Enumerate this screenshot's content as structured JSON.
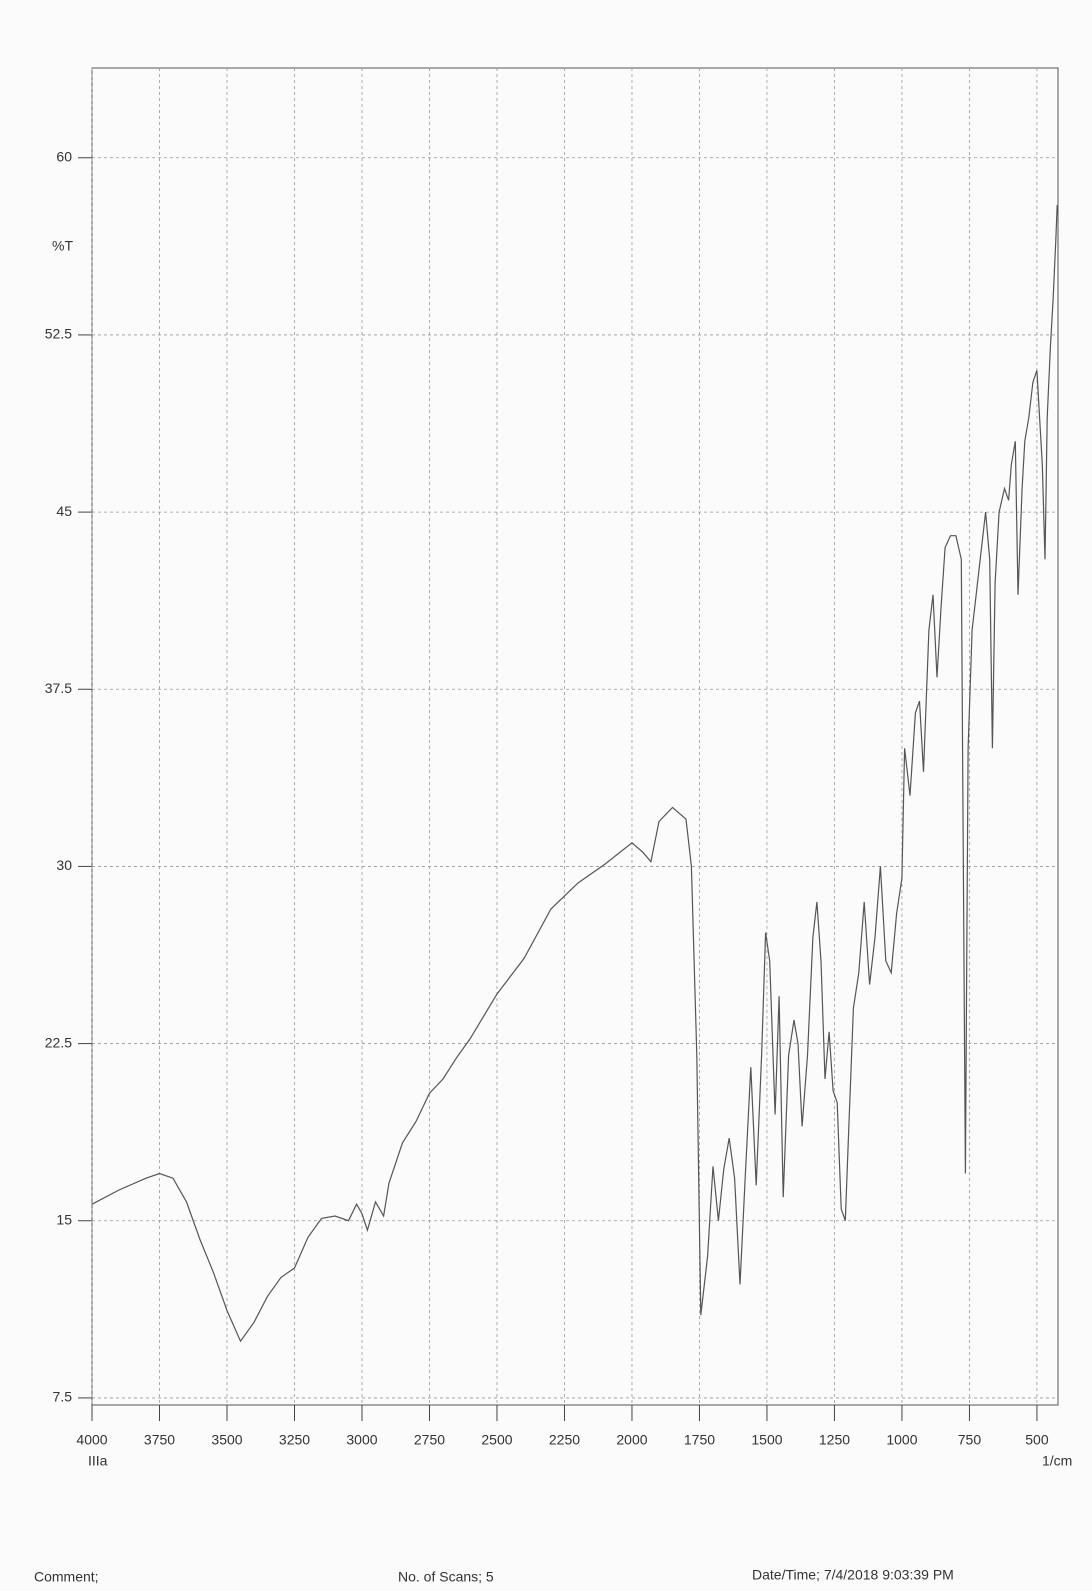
{
  "chart_data": {
    "type": "line",
    "y_label": "%T",
    "x_label": "1/cm",
    "sample": "IIIa",
    "footer": {
      "comment": "Comment;",
      "scans": "No. of Scans; 5",
      "datetime": "Date/Time; 7/4/2018 9:03:39 PM"
    },
    "xlim": [
      4000,
      422
    ],
    "ylim": [
      7.2,
      63.8
    ],
    "xticks": [
      4000,
      3750,
      3500,
      3250,
      3000,
      2750,
      2500,
      2250,
      2000,
      1750,
      1500,
      1250,
      1000,
      750,
      500
    ],
    "yticks": [
      7.5,
      15,
      22.5,
      30,
      37.5,
      45,
      52.5,
      60
    ],
    "grid": true,
    "series": [
      {
        "color": "#555",
        "x": [
          4000,
          3900,
          3800,
          3750,
          3700,
          3650,
          3600,
          3550,
          3500,
          3450,
          3400,
          3350,
          3300,
          3250,
          3200,
          3150,
          3100,
          3050,
          3020,
          3000,
          2980,
          2950,
          2920,
          2900,
          2850,
          2800,
          2750,
          2700,
          2650,
          2600,
          2500,
          2400,
          2300,
          2200,
          2100,
          2000,
          1960,
          1930,
          1900,
          1850,
          1800,
          1780,
          1760,
          1745,
          1720,
          1700,
          1680,
          1660,
          1640,
          1620,
          1600,
          1580,
          1560,
          1540,
          1520,
          1505,
          1490,
          1470,
          1455,
          1440,
          1420,
          1400,
          1385,
          1370,
          1350,
          1330,
          1315,
          1300,
          1285,
          1270,
          1255,
          1240,
          1225,
          1210,
          1195,
          1180,
          1160,
          1140,
          1120,
          1100,
          1080,
          1060,
          1040,
          1020,
          1000,
          990,
          970,
          950,
          935,
          920,
          900,
          885,
          870,
          855,
          840,
          820,
          800,
          780,
          765,
          755,
          740,
          720,
          700,
          690,
          675,
          665,
          655,
          640,
          620,
          605,
          595,
          580,
          570,
          555,
          545,
          530,
          515,
          500,
          490,
          480,
          470,
          462,
          450,
          440,
          430,
          425
        ],
        "values": [
          15.7,
          16.3,
          16.8,
          17.0,
          16.8,
          15.8,
          14.2,
          12.8,
          11.2,
          9.9,
          10.7,
          11.8,
          12.6,
          13.0,
          14.3,
          15.1,
          15.2,
          15.0,
          15.7,
          15.3,
          14.6,
          15.8,
          15.2,
          16.6,
          18.3,
          19.2,
          20.4,
          21.0,
          21.9,
          22.7,
          24.6,
          26.1,
          28.2,
          29.3,
          30.1,
          31.0,
          30.6,
          30.2,
          31.9,
          32.5,
          32.0,
          30.0,
          22.0,
          11.0,
          13.5,
          17.3,
          15.0,
          17.2,
          18.5,
          16.8,
          12.3,
          17.0,
          21.5,
          16.5,
          22.0,
          27.2,
          26.0,
          19.5,
          24.5,
          16.0,
          22.0,
          23.5,
          22.5,
          19.0,
          22.0,
          27.0,
          28.5,
          26.0,
          21.0,
          23.0,
          20.5,
          20.0,
          15.5,
          15.0,
          19.5,
          24.0,
          25.5,
          28.5,
          25.0,
          27.0,
          30.0,
          26.0,
          25.5,
          28.0,
          29.5,
          35.0,
          33.0,
          36.5,
          37.0,
          34.0,
          40.0,
          41.5,
          38.0,
          41.0,
          43.5,
          44.0,
          44.0,
          43.0,
          17.0,
          35.0,
          40.0,
          42.0,
          44.0,
          45.0,
          43.0,
          35.0,
          42.0,
          45.0,
          46.0,
          45.5,
          47.0,
          48.0,
          41.5,
          46.0,
          48.0,
          49.0,
          50.5,
          51.0,
          49.0,
          47.0,
          43.0,
          49.0,
          52.0,
          54.0,
          56.5,
          58.0
        ]
      }
    ]
  }
}
